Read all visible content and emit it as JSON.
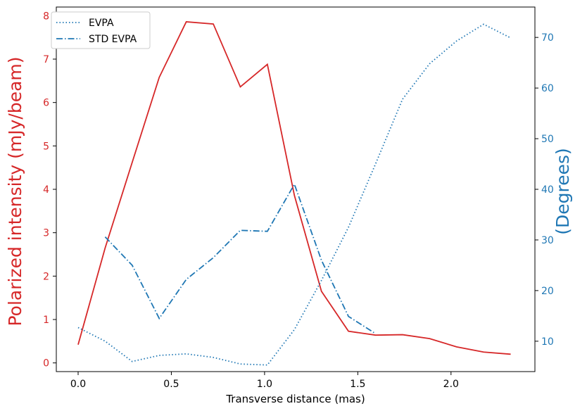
{
  "chart_data": {
    "type": "line",
    "xlabel": "Transverse distance (mas)",
    "ylabel_left": "Polarized intensity (mJy/beam)",
    "ylabel_right": "(Degrees)",
    "xlim": [
      -0.117,
      2.45
    ],
    "ylim_left": [
      -0.2,
      8.2
    ],
    "ylim_right": [
      4,
      76
    ],
    "xticks": [
      0.0,
      0.5,
      1.0,
      1.5,
      2.0
    ],
    "xtick_labels": [
      "0.0",
      "0.5",
      "1.0",
      "1.5",
      "2.0"
    ],
    "yticks_left": [
      0,
      1,
      2,
      3,
      4,
      5,
      6,
      7,
      8
    ],
    "ytick_labels_left": [
      "0",
      "1",
      "2",
      "3",
      "4",
      "5",
      "6",
      "7",
      "8"
    ],
    "yticks_right": [
      10,
      20,
      30,
      40,
      50,
      60,
      70
    ],
    "ytick_labels_right": [
      "10",
      "20",
      "30",
      "40",
      "50",
      "60",
      "70"
    ],
    "grid": false,
    "legend_position": "top-left",
    "colors": {
      "intensity": "#d62728",
      "evpa": "#1f77b4",
      "left_axis": "#d62728",
      "right_axis": "#1f77b4"
    },
    "series": [
      {
        "axis": "left",
        "style": "solid",
        "x": [
          0.0,
          0.145,
          0.29,
          0.435,
          0.58,
          0.725,
          0.87,
          1.015,
          1.16,
          1.305,
          1.45,
          1.595,
          1.74,
          1.885,
          2.03,
          2.175,
          2.32
        ],
        "values": [
          0.42,
          2.65,
          4.62,
          6.58,
          7.86,
          7.81,
          6.36,
          6.88,
          3.86,
          1.65,
          0.73,
          0.64,
          0.65,
          0.56,
          0.37,
          0.25,
          0.2
        ]
      },
      {
        "name": "EVPA",
        "axis": "right",
        "style": "dotted",
        "x": [
          0.0,
          0.145,
          0.29,
          0.435,
          0.58,
          0.725,
          0.87,
          1.015,
          1.16,
          1.305,
          1.45,
          1.595,
          1.74,
          1.885,
          2.03,
          2.175,
          2.32
        ],
        "values": [
          12.7,
          10.0,
          6.0,
          7.2,
          7.5,
          6.8,
          5.5,
          5.3,
          12.3,
          22.0,
          32.5,
          45.0,
          57.8,
          64.8,
          69.3,
          72.6,
          69.9
        ]
      },
      {
        "name": "STD EVPA",
        "axis": "right",
        "style": "dashdot",
        "x": [
          0.145,
          0.29,
          0.435,
          0.58,
          0.725,
          0.87,
          1.015,
          1.16,
          1.305,
          1.45,
          1.595
        ],
        "values": [
          30.6,
          25.0,
          14.5,
          22.2,
          26.5,
          31.9,
          31.7,
          41.0,
          26.0,
          14.9,
          11.5
        ]
      }
    ]
  }
}
